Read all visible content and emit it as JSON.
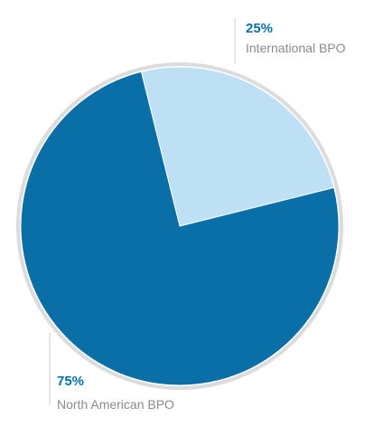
{
  "chart_data": {
    "type": "pie",
    "start_angle_deg": 0,
    "direction": "clockwise",
    "slices": [
      {
        "label": "International BPO",
        "value": 25,
        "value_label": "25%",
        "color": "#bde0f5"
      },
      {
        "label": "North American BPO",
        "value": 75,
        "value_label": "75%",
        "color": "#0a6fa6"
      }
    ]
  },
  "colors": {
    "ring": "#dcdcdc",
    "value_text": "#0a6fa6",
    "label_text": "#8a8a8a",
    "leader": "#cccccc"
  }
}
